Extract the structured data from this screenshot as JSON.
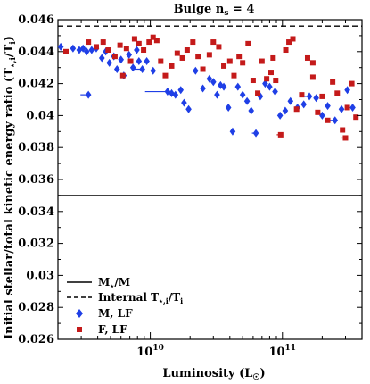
{
  "chart_data": {
    "type": "scatter",
    "title": "Bulge n",
    "title_sub": "s",
    "title_rest": " = 4",
    "xlabel": "Luminosity (L",
    "xlabel_sym": "☉",
    "xlabel_close": ")",
    "ylabel": "Initial stellar/total kinetic energy ratio (T",
    "ylabel_sub": "⋆,i",
    "ylabel_mid": "/T",
    "ylabel_sub2": "i",
    "ylabel_close": ")",
    "x_scale": "log",
    "xlim": [
      2000000000.0,
      400000000000.0
    ],
    "ylim": [
      0.026,
      0.046
    ],
    "x_ticks": [
      {
        "value": 10000000000.0,
        "base": "10",
        "exp": "10"
      },
      {
        "value": 100000000000.0,
        "base": "10",
        "exp": "11"
      }
    ],
    "y_ticks": [
      {
        "value": 0.026,
        "label": "0.026"
      },
      {
        "value": 0.028,
        "label": "0.028"
      },
      {
        "value": 0.03,
        "label": "0.03"
      },
      {
        "value": 0.032,
        "label": "0.032"
      },
      {
        "value": 0.034,
        "label": "0.034"
      },
      {
        "value": 0.036,
        "label": "0.036"
      },
      {
        "value": 0.038,
        "label": "0.038"
      },
      {
        "value": 0.04,
        "label": "0.04"
      },
      {
        "value": 0.042,
        "label": "0.042"
      },
      {
        "value": 0.044,
        "label": "0.044"
      },
      {
        "value": 0.046,
        "label": "0.046"
      }
    ],
    "hlines": [
      {
        "name": "M⋆/M",
        "y": 0.035,
        "style": "solid"
      },
      {
        "name": "Internal T⋆,i/Ti",
        "y": 0.0456,
        "style": "dashed"
      }
    ],
    "legend": {
      "position": "bottom-left",
      "entries": [
        {
          "label": "M",
          "sub": "⋆",
          "rest": "/M",
          "kind": "solid"
        },
        {
          "label": "Internal T",
          "sub": "⋆,i",
          "rest": "/T",
          "sub2": "i",
          "kind": "dashed"
        },
        {
          "label": "M, LF",
          "kind": "diamond"
        },
        {
          "label": "F, LF",
          "kind": "square"
        }
      ]
    },
    "series": [
      {
        "name": "M, LF",
        "marker": "diamond",
        "color": "#1f3fe6",
        "points": [
          {
            "x": 2100000000.0,
            "y": 0.0443
          },
          {
            "x": 2600000000.0,
            "y": 0.0442
          },
          {
            "x": 2900000000.0,
            "y": 0.0441
          },
          {
            "x": 3100000000.0,
            "y": 0.0442
          },
          {
            "x": 3300000000.0,
            "y": 0.044
          },
          {
            "x": 3400000000.0,
            "y": 0.0413,
            "err": 0.06
          },
          {
            "x": 3600000000.0,
            "y": 0.0441
          },
          {
            "x": 3900000000.0,
            "y": 0.0442
          },
          {
            "x": 4300000000.0,
            "y": 0.0436
          },
          {
            "x": 4600000000.0,
            "y": 0.044
          },
          {
            "x": 4900000000.0,
            "y": 0.0433
          },
          {
            "x": 5300000000.0,
            "y": 0.0437
          },
          {
            "x": 5600000000.0,
            "y": 0.0429
          },
          {
            "x": 6000000000.0,
            "y": 0.0435
          },
          {
            "x": 6300000000.0,
            "y": 0.0425
          },
          {
            "x": 6900000000.0,
            "y": 0.0438
          },
          {
            "x": 7400000000.0,
            "y": 0.043
          },
          {
            "x": 7900000000.0,
            "y": 0.0441
          },
          {
            "x": 8200000000.0,
            "y": 0.0434
          },
          {
            "x": 8700000000.0,
            "y": 0.0429,
            "err": 0.07
          },
          {
            "x": 9400000000.0,
            "y": 0.0434
          },
          {
            "x": 10500000000.0,
            "y": 0.0428
          },
          {
            "x": 13500000000.0,
            "y": 0.0415,
            "err": 0.17
          },
          {
            "x": 14500000000.0,
            "y": 0.0414
          },
          {
            "x": 15500000000.0,
            "y": 0.0413
          },
          {
            "x": 17000000000.0,
            "y": 0.0416
          },
          {
            "x": 18000000000.0,
            "y": 0.0408
          },
          {
            "x": 19500000000.0,
            "y": 0.0404
          },
          {
            "x": 22000000000.0,
            "y": 0.0428
          },
          {
            "x": 25000000000.0,
            "y": 0.0417
          },
          {
            "x": 28000000000.0,
            "y": 0.0423
          },
          {
            "x": 30000000000.0,
            "y": 0.0421
          },
          {
            "x": 32000000000.0,
            "y": 0.0413
          },
          {
            "x": 34000000000.0,
            "y": 0.0419
          },
          {
            "x": 36000000000.0,
            "y": 0.0418
          },
          {
            "x": 39000000000.0,
            "y": 0.0405
          },
          {
            "x": 42000000000.0,
            "y": 0.039
          },
          {
            "x": 46000000000.0,
            "y": 0.0418
          },
          {
            "x": 50000000000.0,
            "y": 0.0413
          },
          {
            "x": 54000000000.0,
            "y": 0.0409
          },
          {
            "x": 58000000000.0,
            "y": 0.0403
          },
          {
            "x": 63000000000.0,
            "y": 0.0389,
            "err": 0.03
          },
          {
            "x": 68000000000.0,
            "y": 0.0412
          },
          {
            "x": 74000000000.0,
            "y": 0.042
          },
          {
            "x": 80000000000.0,
            "y": 0.0418
          },
          {
            "x": 88000000000.0,
            "y": 0.0415
          },
          {
            "x": 96000000000.0,
            "y": 0.04
          },
          {
            "x": 105000000000.0,
            "y": 0.0403
          },
          {
            "x": 115000000000.0,
            "y": 0.0409
          },
          {
            "x": 130000000000.0,
            "y": 0.0405
          },
          {
            "x": 145000000000.0,
            "y": 0.0407
          },
          {
            "x": 160000000000.0,
            "y": 0.0412,
            "err": 0.05
          },
          {
            "x": 180000000000.0,
            "y": 0.0411
          },
          {
            "x": 200000000000.0,
            "y": 0.04
          },
          {
            "x": 220000000000.0,
            "y": 0.0406
          },
          {
            "x": 250000000000.0,
            "y": 0.0397,
            "err": 0.04
          },
          {
            "x": 280000000000.0,
            "y": 0.0404
          },
          {
            "x": 310000000000.0,
            "y": 0.0416
          },
          {
            "x": 340000000000.0,
            "y": 0.0405
          }
        ]
      },
      {
        "name": "F, LF",
        "marker": "square",
        "color": "#c41a1a",
        "points": [
          {
            "x": 2300000000.0,
            "y": 0.044
          },
          {
            "x": 3400000000.0,
            "y": 0.0446
          },
          {
            "x": 3900000000.0,
            "y": 0.0443
          },
          {
            "x": 4400000000.0,
            "y": 0.0446
          },
          {
            "x": 4800000000.0,
            "y": 0.0441
          },
          {
            "x": 5400000000.0,
            "y": 0.0437
          },
          {
            "x": 5900000000.0,
            "y": 0.0444
          },
          {
            "x": 6200000000.0,
            "y": 0.0425
          },
          {
            "x": 6600000000.0,
            "y": 0.0442
          },
          {
            "x": 7100000000.0,
            "y": 0.0434
          },
          {
            "x": 7600000000.0,
            "y": 0.0448
          },
          {
            "x": 8200000000.0,
            "y": 0.0445
          },
          {
            "x": 8900000000.0,
            "y": 0.0441
          },
          {
            "x": 9800000000.0,
            "y": 0.0446
          },
          {
            "x": 10500000000.0,
            "y": 0.0449
          },
          {
            "x": 11200000000.0,
            "y": 0.0447
          },
          {
            "x": 12000000000.0,
            "y": 0.0434
          },
          {
            "x": 13000000000.0,
            "y": 0.0425
          },
          {
            "x": 14500000000.0,
            "y": 0.0431
          },
          {
            "x": 16000000000.0,
            "y": 0.0439
          },
          {
            "x": 17500000000.0,
            "y": 0.0436
          },
          {
            "x": 19000000000.0,
            "y": 0.0441
          },
          {
            "x": 21000000000.0,
            "y": 0.0446
          },
          {
            "x": 23000000000.0,
            "y": 0.0437
          },
          {
            "x": 25000000000.0,
            "y": 0.0429
          },
          {
            "x": 28000000000.0,
            "y": 0.0438
          },
          {
            "x": 30000000000.0,
            "y": 0.0446
          },
          {
            "x": 33000000000.0,
            "y": 0.0443
          },
          {
            "x": 36000000000.0,
            "y": 0.0431
          },
          {
            "x": 40000000000.0,
            "y": 0.0434
          },
          {
            "x": 43000000000.0,
            "y": 0.0425
          },
          {
            "x": 47000000000.0,
            "y": 0.0437
          },
          {
            "x": 50000000000.0,
            "y": 0.0433
          },
          {
            "x": 55000000000.0,
            "y": 0.0445
          },
          {
            "x": 60000000000.0,
            "y": 0.0422
          },
          {
            "x": 65000000000.0,
            "y": 0.0414
          },
          {
            "x": 70000000000.0,
            "y": 0.0434
          },
          {
            "x": 76000000000.0,
            "y": 0.0423
          },
          {
            "x": 82000000000.0,
            "y": 0.0427
          },
          {
            "x": 89000000000.0,
            "y": 0.0422
          },
          {
            "x": 97000000000.0,
            "y": 0.0388,
            "err": 0.03
          },
          {
            "x": 106000000000.0,
            "y": 0.0441
          },
          {
            "x": 112000000000.0,
            "y": 0.0446
          },
          {
            "x": 120000000000.0,
            "y": 0.0448
          },
          {
            "x": 128000000000.0,
            "y": 0.0404
          },
          {
            "x": 140000000000.0,
            "y": 0.0413
          },
          {
            "x": 155000000000.0,
            "y": 0.0436
          },
          {
            "x": 170000000000.0,
            "y": 0.0424
          },
          {
            "x": 185000000000.0,
            "y": 0.0402
          },
          {
            "x": 200000000000.0,
            "y": 0.0412
          },
          {
            "x": 220000000000.0,
            "y": 0.0397
          },
          {
            "x": 240000000000.0,
            "y": 0.0421
          },
          {
            "x": 260000000000.0,
            "y": 0.0414
          },
          {
            "x": 285000000000.0,
            "y": 0.0391
          },
          {
            "x": 310000000000.0,
            "y": 0.0405
          },
          {
            "x": 335000000000.0,
            "y": 0.042
          },
          {
            "x": 360000000000.0,
            "y": 0.0399
          },
          {
            "x": 300000000000.0,
            "y": 0.0386,
            "err": 0.03
          },
          {
            "x": 170000000000.0,
            "y": 0.0433
          },
          {
            "x": 85000000000.0,
            "y": 0.0436
          }
        ]
      }
    ]
  }
}
